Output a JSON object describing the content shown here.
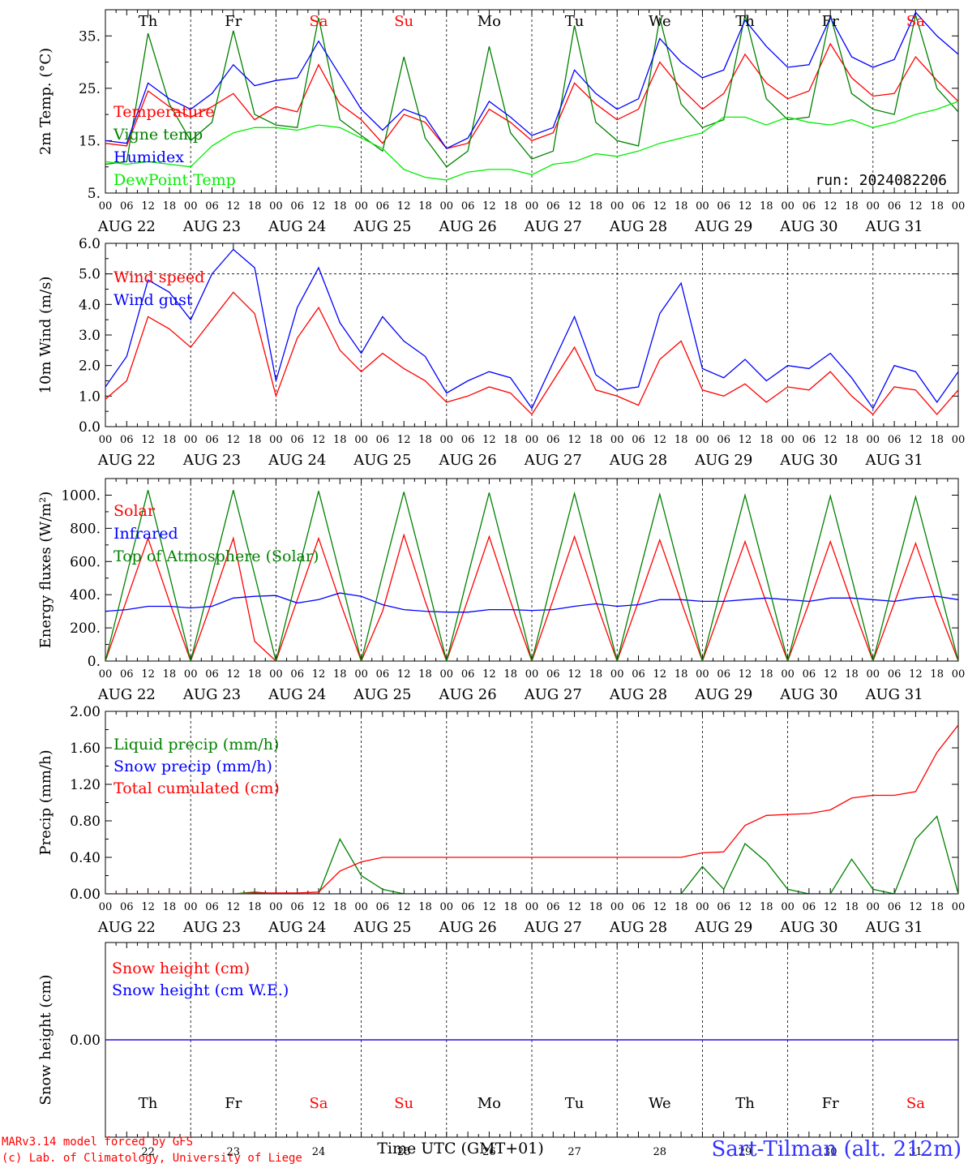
{
  "chart_data": [
    {
      "type": "line",
      "ylabel": "2m Temp. (°C)",
      "ylim": [
        5,
        40
      ],
      "yticks": [
        5,
        15,
        25,
        35
      ],
      "ytick_labels": [
        "5.",
        "15.",
        "25.",
        "35."
      ],
      "x_hours": [
        0,
        6,
        12,
        18,
        24,
        30,
        36,
        42,
        48,
        54,
        60,
        66,
        72,
        78,
        84,
        90,
        96,
        102,
        108,
        114,
        120,
        126,
        132,
        138,
        144,
        150,
        156,
        162,
        168,
        174,
        180,
        186,
        192,
        198,
        204,
        210,
        216,
        222,
        228,
        234,
        240
      ],
      "annotation": "run: 2024082206",
      "weekday_labels": [
        "Th",
        "Fr",
        "Sa",
        "Su",
        "Mo",
        "Tu",
        "We",
        "Th",
        "Fr",
        "Sa"
      ],
      "series": [
        {
          "name": "Temperature",
          "color": "#ff0000",
          "values": [
            14.5,
            14.0,
            24.5,
            21.5,
            19.5,
            21.5,
            24.0,
            19.0,
            21.5,
            20.5,
            29.5,
            22.0,
            19.0,
            14.5,
            20.0,
            18.5,
            13.5,
            14.5,
            21.0,
            18.5,
            15.0,
            16.5,
            26.0,
            22.0,
            19.0,
            21.0,
            30.0,
            25.0,
            21.0,
            24.0,
            31.5,
            26.0,
            23.0,
            24.5,
            33.5,
            27.0,
            23.5,
            24.0,
            31.0,
            26.5,
            22.5
          ]
        },
        {
          "name": "Vigne temp",
          "color": "#008000",
          "values": [
            10.5,
            11.0,
            35.5,
            22.0,
            15.0,
            18.5,
            36.0,
            20.0,
            18.0,
            17.5,
            38.5,
            19.0,
            16.0,
            13.0,
            31.0,
            15.5,
            10.0,
            13.0,
            33.0,
            16.5,
            11.5,
            13.0,
            37.0,
            18.5,
            15.0,
            14.0,
            38.5,
            22.0,
            17.5,
            19.0,
            39.0,
            23.0,
            19.0,
            19.5,
            39.0,
            24.0,
            21.0,
            20.0,
            39.0,
            25.0,
            20.5
          ]
        },
        {
          "name": "Humidex",
          "color": "#0000ff",
          "values": [
            15.0,
            14.5,
            26.0,
            23.0,
            21.0,
            24.0,
            29.5,
            25.5,
            26.5,
            27.0,
            34.0,
            27.5,
            21.0,
            17.0,
            21.0,
            19.5,
            13.5,
            15.5,
            22.5,
            19.5,
            16.0,
            17.5,
            28.5,
            24.0,
            21.0,
            23.0,
            34.5,
            30.0,
            27.0,
            28.5,
            38.0,
            33.0,
            29.0,
            29.5,
            38.5,
            31.0,
            29.0,
            30.5,
            39.5,
            35.0,
            31.5
          ]
        },
        {
          "name": "DewPoint Temp",
          "color": "#00ee00",
          "values": [
            11.0,
            10.5,
            11.0,
            10.5,
            10.0,
            14.0,
            16.5,
            17.5,
            17.5,
            17.0,
            18.0,
            17.5,
            15.5,
            13.5,
            9.5,
            8.0,
            7.5,
            9.0,
            9.5,
            9.5,
            8.5,
            10.5,
            11.0,
            12.5,
            12.0,
            13.0,
            14.5,
            15.5,
            16.5,
            19.5,
            19.5,
            18.0,
            19.5,
            18.5,
            18.0,
            19.0,
            17.5,
            18.5,
            20.0,
            21.0,
            22.5
          ]
        }
      ]
    },
    {
      "type": "line",
      "ylabel": "10m Wind (m/s)",
      "ylim": [
        0,
        6
      ],
      "yticks": [
        0,
        1,
        2,
        3,
        4,
        5,
        6
      ],
      "ytick_labels": [
        "0.0",
        "1.0",
        "2.0",
        "3.0",
        "4.0",
        "5.0",
        "6.0"
      ],
      "reference_line": 5,
      "x_hours": [
        0,
        6,
        12,
        18,
        24,
        30,
        36,
        42,
        48,
        54,
        60,
        66,
        72,
        78,
        84,
        90,
        96,
        102,
        108,
        114,
        120,
        126,
        132,
        138,
        144,
        150,
        156,
        162,
        168,
        174,
        180,
        186,
        192,
        198,
        204,
        210,
        216,
        222,
        228,
        234,
        240
      ],
      "series": [
        {
          "name": "Wind speed",
          "color": "#ff0000",
          "values": [
            0.9,
            1.5,
            3.6,
            3.2,
            2.6,
            3.5,
            4.4,
            3.7,
            1.0,
            2.9,
            3.9,
            2.5,
            1.8,
            2.4,
            1.9,
            1.5,
            0.8,
            1.0,
            1.3,
            1.1,
            0.4,
            1.5,
            2.6,
            1.2,
            1.0,
            0.7,
            2.2,
            2.8,
            1.2,
            1.0,
            1.4,
            0.8,
            1.3,
            1.2,
            1.8,
            1.0,
            0.4,
            1.3,
            1.2,
            0.4,
            1.2
          ]
        },
        {
          "name": "Wind gust",
          "color": "#0000ff",
          "values": [
            1.3,
            2.3,
            4.8,
            4.4,
            3.5,
            5.0,
            5.8,
            5.2,
            1.5,
            3.9,
            5.2,
            3.4,
            2.4,
            3.6,
            2.8,
            2.3,
            1.1,
            1.5,
            1.8,
            1.6,
            0.6,
            2.1,
            3.6,
            1.7,
            1.2,
            1.3,
            3.7,
            4.7,
            1.9,
            1.6,
            2.2,
            1.5,
            2.0,
            1.9,
            2.4,
            1.6,
            0.6,
            2.0,
            1.8,
            0.8,
            1.8
          ]
        }
      ]
    },
    {
      "type": "line",
      "ylabel": "Energy fluxes (W/m²)",
      "ylim": [
        0,
        1100
      ],
      "yticks": [
        0,
        200,
        400,
        600,
        800,
        1000
      ],
      "ytick_labels": [
        "0.",
        "200.",
        "400.",
        "600.",
        "800.",
        "1000."
      ],
      "x_hours": [
        0,
        6,
        12,
        18,
        24,
        30,
        36,
        42,
        48,
        54,
        60,
        66,
        72,
        78,
        84,
        90,
        96,
        102,
        108,
        114,
        120,
        126,
        132,
        138,
        144,
        150,
        156,
        162,
        168,
        174,
        180,
        186,
        192,
        198,
        204,
        210,
        216,
        222,
        228,
        234,
        240
      ],
      "series": [
        {
          "name": "Solar",
          "color": "#ff0000",
          "values": [
            0,
            370,
            740,
            360,
            0,
            360,
            740,
            120,
            0,
            370,
            740,
            360,
            0,
            300,
            760,
            360,
            0,
            370,
            750,
            360,
            0,
            370,
            750,
            360,
            0,
            360,
            730,
            360,
            0,
            360,
            720,
            350,
            0,
            350,
            720,
            350,
            0,
            350,
            710,
            340,
            0
          ]
        },
        {
          "name": "Infrared",
          "color": "#0000ff",
          "values": [
            300,
            310,
            330,
            330,
            320,
            330,
            380,
            390,
            395,
            350,
            370,
            410,
            390,
            340,
            310,
            300,
            295,
            295,
            310,
            310,
            305,
            310,
            330,
            345,
            330,
            340,
            370,
            370,
            360,
            360,
            370,
            380,
            370,
            360,
            380,
            380,
            370,
            360,
            380,
            390,
            370
          ]
        },
        {
          "name": "Top of Atmosphere (Solar)",
          "color": "#008000",
          "values": [
            0,
            520,
            1030,
            520,
            0,
            520,
            1030,
            520,
            0,
            520,
            1025,
            520,
            0,
            520,
            1020,
            520,
            0,
            515,
            1015,
            515,
            0,
            515,
            1010,
            515,
            0,
            510,
            1005,
            510,
            0,
            505,
            1000,
            505,
            0,
            500,
            995,
            500,
            0,
            500,
            990,
            500,
            0
          ]
        }
      ]
    },
    {
      "type": "line",
      "ylabel": "Precip (mm/h)",
      "ylim": [
        0,
        2
      ],
      "yticks": [
        0,
        0.4,
        0.8,
        1.2,
        1.6,
        2.0
      ],
      "ytick_labels": [
        "0.00",
        "0.40",
        "0.80",
        "1.20",
        "1.60",
        "2.00"
      ],
      "x_hours": [
        0,
        6,
        12,
        18,
        24,
        30,
        36,
        42,
        48,
        54,
        60,
        66,
        72,
        78,
        84,
        90,
        96,
        102,
        108,
        114,
        120,
        126,
        132,
        138,
        144,
        150,
        156,
        162,
        168,
        174,
        180,
        186,
        192,
        198,
        204,
        210,
        216,
        222,
        228,
        234,
        240
      ],
      "series": [
        {
          "name": "Liquid precip (mm/h)",
          "color": "#008000",
          "values": [
            0,
            0,
            0,
            0,
            0,
            0,
            0,
            0.02,
            0,
            0,
            0,
            0.6,
            0.2,
            0.05,
            0,
            0,
            0,
            0,
            0,
            0,
            0,
            0,
            0,
            0,
            0,
            0,
            0,
            0,
            0.3,
            0.05,
            0.55,
            0.35,
            0.05,
            0,
            0,
            0.38,
            0.05,
            0,
            0.6,
            0.85,
            0
          ]
        },
        {
          "name": "Snow precip (mm/h)",
          "color": "#0000ff",
          "values": [
            0,
            0,
            0,
            0,
            0,
            0,
            0,
            0,
            0,
            0,
            0,
            0,
            0,
            0,
            0,
            0,
            0,
            0,
            0,
            0,
            0,
            0,
            0,
            0,
            0,
            0,
            0,
            0,
            0,
            0,
            0,
            0,
            0,
            0,
            0,
            0,
            0,
            0,
            0,
            0,
            0
          ]
        },
        {
          "name": "Total cumulated (cm)",
          "color": "#ff0000",
          "values": [
            0,
            0,
            0,
            0,
            0,
            0,
            0,
            0.01,
            0.01,
            0.01,
            0.02,
            0.25,
            0.35,
            0.4,
            0.4,
            0.4,
            0.4,
            0.4,
            0.4,
            0.4,
            0.4,
            0.4,
            0.4,
            0.4,
            0.4,
            0.4,
            0.4,
            0.4,
            0.45,
            0.46,
            0.75,
            0.86,
            0.87,
            0.88,
            0.92,
            1.05,
            1.08,
            1.08,
            1.12,
            1.55,
            1.85
          ]
        }
      ]
    },
    {
      "type": "line",
      "ylabel": "Snow height (cm)",
      "ylim": [
        -1,
        1
      ],
      "yticks": [
        0
      ],
      "ytick_labels": [
        "0.00"
      ],
      "x_hours": [
        0,
        240
      ],
      "series": [
        {
          "name": "Snow height (cm)",
          "color": "#ff0000",
          "values": [
            0,
            0
          ]
        },
        {
          "name": "Snow height (cm W.E.)",
          "color": "#0000ff",
          "values": [
            0,
            0
          ]
        }
      ],
      "weekday_labels": [
        "Th",
        "Fr",
        "Sa",
        "Su",
        "Mo",
        "Tu",
        "We",
        "Th",
        "Fr",
        "Sa"
      ],
      "day_numbers": [
        "22",
        "23",
        "24",
        "25",
        "26",
        "27",
        "28",
        "29",
        "30",
        "31"
      ],
      "xlabel": "Time UTC (GMT+01)"
    }
  ],
  "shared": {
    "hour_ticks": [
      "00",
      "06",
      "12",
      "18"
    ],
    "date_labels": [
      "AUG 22",
      "AUG 23",
      "AUG 24",
      "AUG 25",
      "AUG 26",
      "AUG 27",
      "AUG 28",
      "AUG 29",
      "AUG 30",
      "AUG 31"
    ],
    "weekend_color": "#ff0000",
    "weekday_color": "#000000"
  },
  "footer": {
    "credit_line1": "MARv3.14 model forced by GFS",
    "credit_line2": "(c) Lab. of Climatology, University of Liege",
    "station": "Sart-Tilman (alt. 212m)",
    "station_color": "#3333ff",
    "credit_color": "#ff0000"
  }
}
